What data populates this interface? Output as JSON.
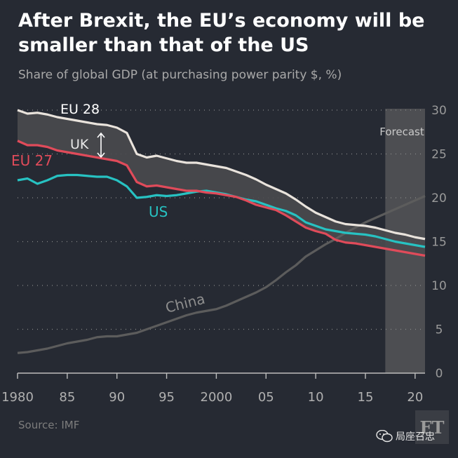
{
  "title": "After Brexit, the EU’s economy will be smaller than that of the US",
  "subtitle": "Share of global GDP (at purchasing power parity $, %)",
  "source": "Source: IMF",
  "logo_text": "FT",
  "watermark": "局座召忠",
  "chart_data": {
    "type": "line",
    "title": "After Brexit, the EU’s economy will be smaller than that of the US",
    "subtitle": "Share of global GDP (at purchasing power parity $, %)",
    "xlim": [
      1980,
      2021
    ],
    "ylim": [
      0,
      30
    ],
    "x_ticks": [
      1980,
      1985,
      1990,
      1995,
      2000,
      2005,
      2010,
      2015,
      2020
    ],
    "x_tick_labels": [
      "1980",
      "85",
      "90",
      "95",
      "2000",
      "05",
      "10",
      "15",
      "20"
    ],
    "y_ticks": [
      0,
      5,
      10,
      15,
      20,
      25,
      30
    ],
    "y_axis_side": "right",
    "grid": "horizontal dotted",
    "forecast_region": {
      "label": "Forecast",
      "x_start": 2017,
      "x_end": 2021
    },
    "x": [
      1980,
      1981,
      1982,
      1983,
      1984,
      1985,
      1986,
      1987,
      1988,
      1989,
      1990,
      1991,
      1992,
      1993,
      1994,
      1995,
      1996,
      1997,
      1998,
      1999,
      2000,
      2001,
      2002,
      2003,
      2004,
      2005,
      2006,
      2007,
      2008,
      2009,
      2010,
      2011,
      2012,
      2013,
      2014,
      2015,
      2016,
      2017,
      2018,
      2019,
      2020,
      2021
    ],
    "series": [
      {
        "name": "EU 28",
        "color": "#e9e3dc",
        "values": [
          30.0,
          29.6,
          29.7,
          29.5,
          29.2,
          29.0,
          28.8,
          28.6,
          28.4,
          28.3,
          28.0,
          27.4,
          25.0,
          24.6,
          24.8,
          24.5,
          24.2,
          24.0,
          24.0,
          23.8,
          23.6,
          23.4,
          23.0,
          22.6,
          22.1,
          21.5,
          21.0,
          20.5,
          19.8,
          19.0,
          18.3,
          17.8,
          17.3,
          17.0,
          16.9,
          16.8,
          16.6,
          16.3,
          16.0,
          15.8,
          15.5,
          15.3
        ]
      },
      {
        "name": "EU 27",
        "color": "#e04b5a",
        "values": [
          26.5,
          26.0,
          26.0,
          25.8,
          25.4,
          25.2,
          25.0,
          24.8,
          24.6,
          24.4,
          24.2,
          23.7,
          21.8,
          21.3,
          21.4,
          21.2,
          21.0,
          20.8,
          20.8,
          20.6,
          20.5,
          20.3,
          20.1,
          19.7,
          19.2,
          18.9,
          18.6,
          18.0,
          17.3,
          16.6,
          16.2,
          15.9,
          15.2,
          14.9,
          14.8,
          14.6,
          14.4,
          14.2,
          14.0,
          13.8,
          13.6,
          13.4
        ]
      },
      {
        "name": "US",
        "color": "#27c2c2",
        "values": [
          22.0,
          22.2,
          21.6,
          22.0,
          22.5,
          22.6,
          22.6,
          22.5,
          22.4,
          22.4,
          22.0,
          21.3,
          20.0,
          20.1,
          20.3,
          20.2,
          20.3,
          20.5,
          20.7,
          20.8,
          20.6,
          20.4,
          20.1,
          19.8,
          19.6,
          19.2,
          18.8,
          18.5,
          18.0,
          17.2,
          16.8,
          16.4,
          16.2,
          16.0,
          15.9,
          15.8,
          15.6,
          15.3,
          15.0,
          14.8,
          14.6,
          14.4
        ]
      },
      {
        "name": "China",
        "color": "#5c5c5c",
        "values": [
          2.3,
          2.4,
          2.6,
          2.8,
          3.1,
          3.4,
          3.6,
          3.8,
          4.1,
          4.2,
          4.2,
          4.4,
          4.6,
          5.0,
          5.4,
          5.8,
          6.2,
          6.6,
          6.9,
          7.1,
          7.3,
          7.7,
          8.2,
          8.7,
          9.2,
          9.8,
          10.6,
          11.5,
          12.3,
          13.3,
          14.0,
          14.7,
          15.3,
          16.0,
          16.6,
          17.2,
          17.7,
          18.2,
          18.7,
          19.2,
          19.7,
          20.2
        ]
      }
    ],
    "annotations": [
      {
        "text": "UK",
        "note": "gap between EU 28 and EU 27"
      }
    ]
  }
}
